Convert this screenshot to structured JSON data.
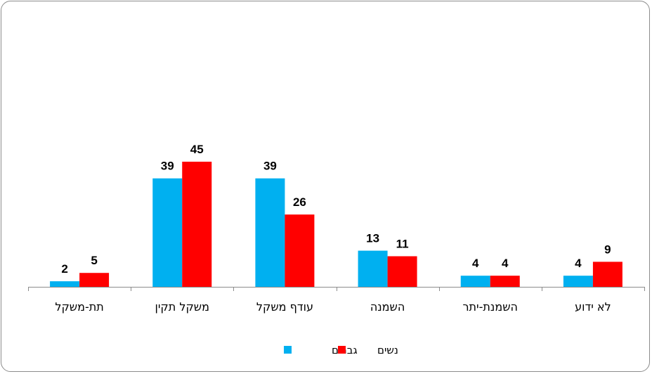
{
  "chart_data": {
    "type": "bar",
    "categories": [
      "תת-משקל",
      "משקל תקין",
      "עודף משקל",
      "השמנה",
      "השמנת-יתר",
      "לא ידוע"
    ],
    "series": [
      {
        "name": "גברים",
        "values": [
          2,
          39,
          39,
          13,
          4,
          4
        ],
        "color": "#00b0f0"
      },
      {
        "name": "נשים",
        "values": [
          5,
          45,
          26,
          11,
          4,
          9
        ],
        "color": "#ff0000"
      }
    ],
    "ylim": [
      0,
      45
    ],
    "grid": false,
    "legend": "bottom-center",
    "data_labels": true
  }
}
